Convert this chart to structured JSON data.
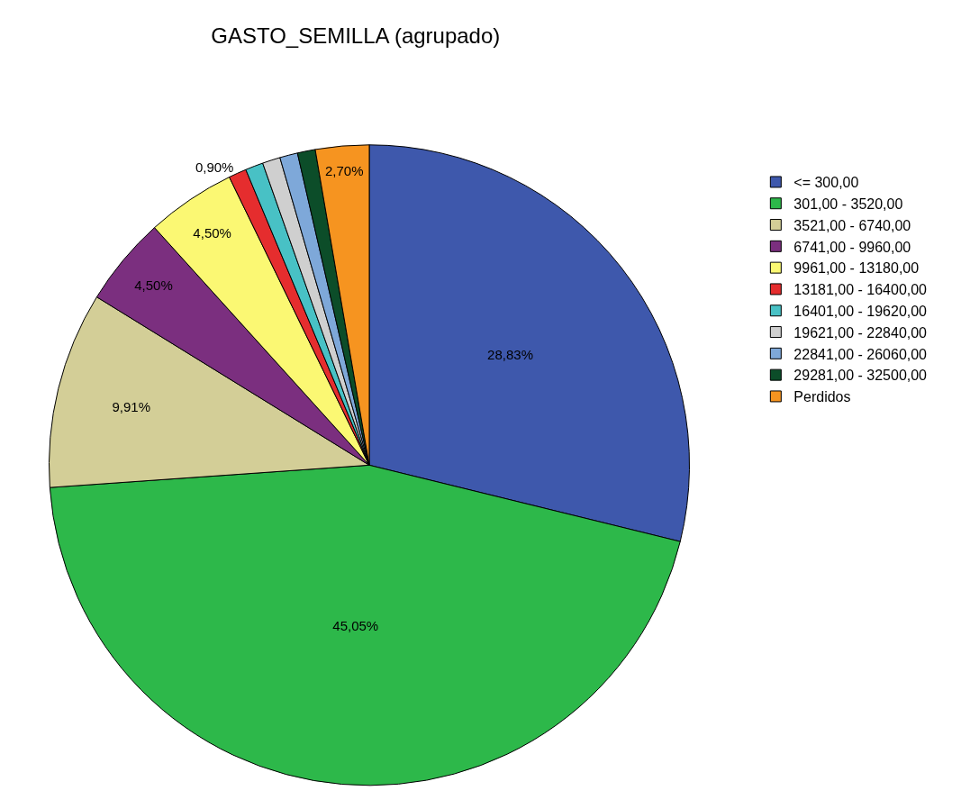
{
  "chart_data": {
    "type": "pie",
    "title": "GASTO_SEMILLA (agrupado)",
    "categories": [
      "<= 300,00",
      "301,00 - 3520,00",
      "3521,00 - 6740,00",
      "6741,00 - 9960,00",
      "9961,00 - 13180,00",
      "13181,00 - 16400,00",
      "16401,00 - 19620,00",
      "19621,00 - 22840,00",
      "22841,00 - 26060,00",
      "29281,00 - 32500,00",
      "Perdidos"
    ],
    "values": [
      28.83,
      45.05,
      9.91,
      4.5,
      4.5,
      0.9,
      0.9,
      0.9,
      0.9,
      0.9,
      2.7
    ],
    "value_labels": [
      "28,83%",
      "45,05%",
      "9,91%",
      "4,50%",
      "4,50%",
      "0,90%",
      null,
      null,
      null,
      null,
      "2,70%"
    ],
    "colors": [
      "#3e58ac",
      "#2db84a",
      "#d3ce97",
      "#7b2f7f",
      "#fbf873",
      "#e52d2e",
      "#48c1c5",
      "#cfcfcf",
      "#7ea8d9",
      "#0c4d29",
      "#f69420"
    ],
    "legend": "top right"
  }
}
